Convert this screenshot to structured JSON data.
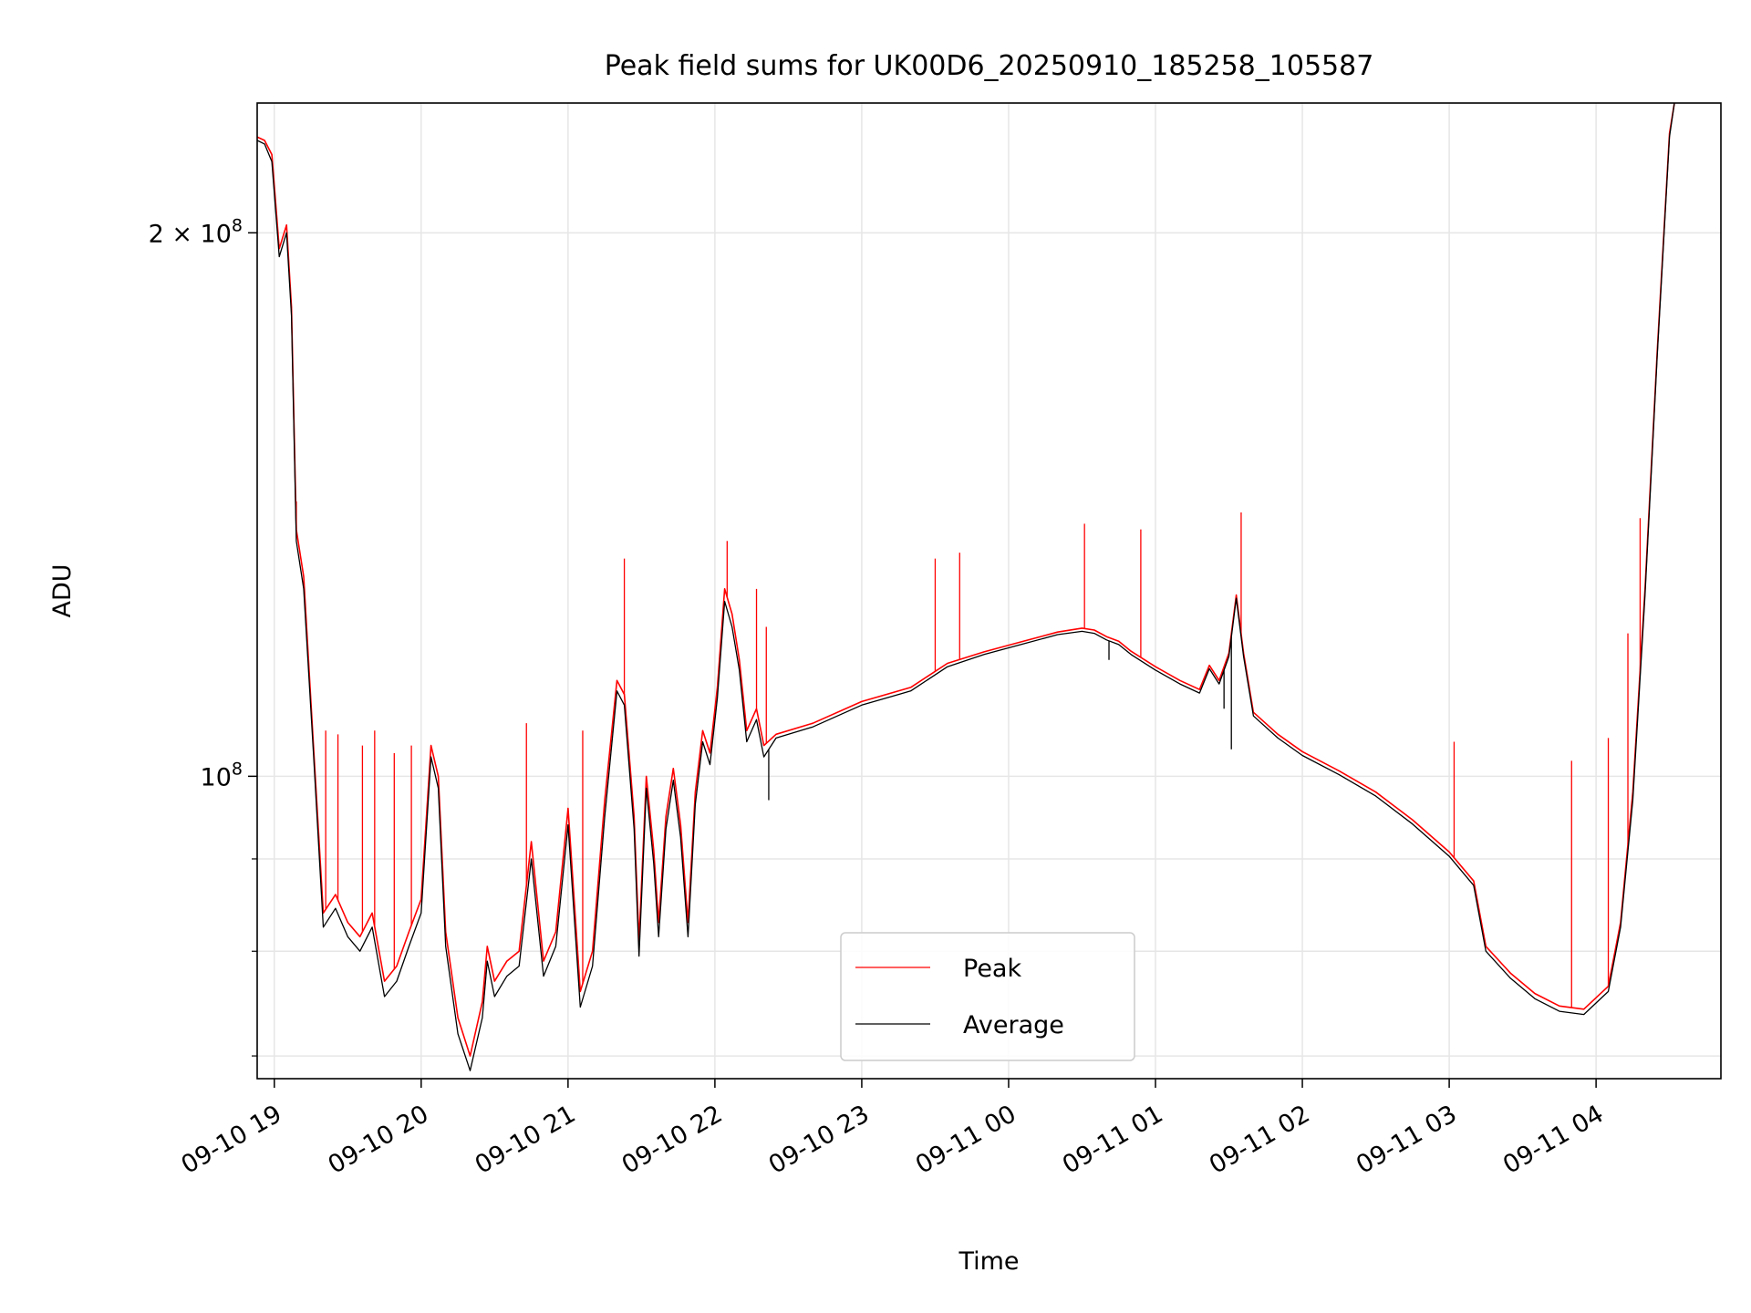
{
  "chart_data": {
    "type": "line",
    "title": "Peak field sums for UK00D6_20250910_185258_105587",
    "xlabel": "Time",
    "ylabel": "ADU",
    "yscale": "log",
    "ylim": [
      68000000,
      236000000
    ],
    "xlim": [
      "2025-09-10 18:53",
      "2025-09-11 04:51"
    ],
    "grid": true,
    "legend_position": "lower center",
    "x_ticks": [
      {
        "t": "2025-09-10 19:00",
        "label": "09-10 19"
      },
      {
        "t": "2025-09-10 20:00",
        "label": "09-10 20"
      },
      {
        "t": "2025-09-10 21:00",
        "label": "09-10 21"
      },
      {
        "t": "2025-09-10 22:00",
        "label": "09-10 22"
      },
      {
        "t": "2025-09-10 23:00",
        "label": "09-10 23"
      },
      {
        "t": "2025-09-11 00:00",
        "label": "09-11 00"
      },
      {
        "t": "2025-09-11 01:00",
        "label": "09-11 01"
      },
      {
        "t": "2025-09-11 02:00",
        "label": "09-11 02"
      },
      {
        "t": "2025-09-11 03:00",
        "label": "09-11 03"
      },
      {
        "t": "2025-09-11 04:00",
        "label": "09-11 04"
      }
    ],
    "y_major_ticks": [
      {
        "value": 100000000,
        "base": "10",
        "exp": "8",
        "coef": ""
      },
      {
        "value": 200000000,
        "base": "10",
        "exp": "8",
        "coef": "2 × "
      }
    ],
    "y_minor_ticks": [
      70000000,
      80000000,
      90000000
    ],
    "series": [
      {
        "name": "Peak",
        "color": "#ff0000",
        "points": [
          [
            "2025-09-10 18:53",
            226000000
          ],
          [
            "2025-09-10 18:56",
            225000000
          ],
          [
            "2025-09-10 18:59",
            221000000
          ],
          [
            "2025-09-10 19:02",
            196000000
          ],
          [
            "2025-09-10 19:05",
            202000000
          ],
          [
            "2025-09-10 19:07",
            182000000
          ],
          [
            "2025-09-10 19:09",
            137000000
          ],
          [
            "2025-09-10 19:12",
            129000000
          ],
          [
            "2025-09-10 19:16",
            104000000
          ],
          [
            "2025-09-10 19:20",
            84000000
          ],
          [
            "2025-09-10 19:25",
            86000000
          ],
          [
            "2025-09-10 19:30",
            83000000
          ],
          [
            "2025-09-10 19:35",
            81500000
          ],
          [
            "2025-09-10 19:40",
            84000000
          ],
          [
            "2025-09-10 19:45",
            77000000
          ],
          [
            "2025-09-10 19:50",
            78500000
          ],
          [
            "2025-09-10 19:55",
            82000000
          ],
          [
            "2025-09-10 20:00",
            85500000
          ],
          [
            "2025-09-10 20:04",
            104000000
          ],
          [
            "2025-09-10 20:07",
            100000000
          ],
          [
            "2025-09-10 20:10",
            82000000
          ],
          [
            "2025-09-10 20:15",
            73500000
          ],
          [
            "2025-09-10 20:20",
            70000000
          ],
          [
            "2025-09-10 20:25",
            75000000
          ],
          [
            "2025-09-10 20:27",
            80500000
          ],
          [
            "2025-09-10 20:30",
            77000000
          ],
          [
            "2025-09-10 20:35",
            79000000
          ],
          [
            "2025-09-10 20:40",
            80000000
          ],
          [
            "2025-09-10 20:45",
            92000000
          ],
          [
            "2025-09-10 20:50",
            79000000
          ],
          [
            "2025-09-10 20:55",
            82000000
          ],
          [
            "2025-09-10 21:00",
            96000000
          ],
          [
            "2025-09-10 21:05",
            76000000
          ],
          [
            "2025-09-10 21:10",
            80000000
          ],
          [
            "2025-09-10 21:15",
            97000000
          ],
          [
            "2025-09-10 21:20",
            113000000
          ],
          [
            "2025-09-10 21:23",
            111000000
          ],
          [
            "2025-09-10 21:27",
            95000000
          ],
          [
            "2025-09-10 21:29",
            81000000
          ],
          [
            "2025-09-10 21:32",
            100000000
          ],
          [
            "2025-09-10 21:35",
            91000000
          ],
          [
            "2025-09-10 21:37",
            83000000
          ],
          [
            "2025-09-10 21:40",
            95000000
          ],
          [
            "2025-09-10 21:43",
            101000000
          ],
          [
            "2025-09-10 21:46",
            94000000
          ],
          [
            "2025-09-10 21:49",
            83000000
          ],
          [
            "2025-09-10 21:52",
            98000000
          ],
          [
            "2025-09-10 21:55",
            106000000
          ],
          [
            "2025-09-10 21:58",
            103000000
          ],
          [
            "2025-09-10 22:01",
            112000000
          ],
          [
            "2025-09-10 22:04",
            127000000
          ],
          [
            "2025-09-10 22:07",
            123000000
          ],
          [
            "2025-09-10 22:10",
            116000000
          ],
          [
            "2025-09-10 22:13",
            106000000
          ],
          [
            "2025-09-10 22:17",
            109000000
          ],
          [
            "2025-09-10 22:20",
            104000000
          ],
          [
            "2025-09-10 22:25",
            105500000
          ],
          [
            "2025-09-10 22:40",
            107000000
          ],
          [
            "2025-09-10 23:00",
            110000000
          ],
          [
            "2025-09-10 23:20",
            112000000
          ],
          [
            "2025-09-10 23:35",
            115500000
          ],
          [
            "2025-09-10 23:50",
            117200000
          ],
          [
            "2025-09-11 00:05",
            118700000
          ],
          [
            "2025-09-11 00:20",
            120200000
          ],
          [
            "2025-09-11 00:30",
            120800000
          ],
          [
            "2025-09-11 00:35",
            120500000
          ],
          [
            "2025-09-11 00:40",
            119500000
          ],
          [
            "2025-09-11 00:45",
            118800000
          ],
          [
            "2025-09-11 00:50",
            117300000
          ],
          [
            "2025-09-11 01:00",
            115000000
          ],
          [
            "2025-09-11 01:10",
            113000000
          ],
          [
            "2025-09-11 01:18",
            111700000
          ],
          [
            "2025-09-11 01:22",
            115200000
          ],
          [
            "2025-09-11 01:26",
            113000000
          ],
          [
            "2025-09-11 01:30",
            117000000
          ],
          [
            "2025-09-11 01:33",
            126000000
          ],
          [
            "2025-09-11 01:36",
            117000000
          ],
          [
            "2025-09-11 01:40",
            108500000
          ],
          [
            "2025-09-11 01:50",
            105500000
          ],
          [
            "2025-09-11 02:00",
            103200000
          ],
          [
            "2025-09-11 02:15",
            100700000
          ],
          [
            "2025-09-11 02:30",
            98000000
          ],
          [
            "2025-09-11 02:45",
            94600000
          ],
          [
            "2025-09-11 03:00",
            90800000
          ],
          [
            "2025-09-11 03:10",
            87500000
          ],
          [
            "2025-09-11 03:15",
            80500000
          ],
          [
            "2025-09-11 03:25",
            77800000
          ],
          [
            "2025-09-11 03:35",
            75800000
          ],
          [
            "2025-09-11 03:45",
            74600000
          ],
          [
            "2025-09-11 03:55",
            74300000
          ],
          [
            "2025-09-11 04:05",
            76500000
          ],
          [
            "2025-09-11 04:10",
            83000000
          ],
          [
            "2025-09-11 04:15",
            98000000
          ],
          [
            "2025-09-11 04:20",
            127000000
          ],
          [
            "2025-09-11 04:25",
            172000000
          ],
          [
            "2025-09-11 04:30",
            227000000
          ],
          [
            "2025-09-11 04:32",
            236000000
          ]
        ],
        "spikes": [
          [
            "2025-09-10 19:09",
            142000000
          ],
          [
            "2025-09-10 19:21",
            106000000
          ],
          [
            "2025-09-10 19:26",
            105500000
          ],
          [
            "2025-09-10 19:36",
            104000000
          ],
          [
            "2025-09-10 19:41",
            106000000
          ],
          [
            "2025-09-10 19:49",
            103000000
          ],
          [
            "2025-09-10 19:56",
            104000000
          ],
          [
            "2025-09-10 20:43",
            107000000
          ],
          [
            "2025-09-10 21:06",
            106000000
          ],
          [
            "2025-09-10 21:23",
            132000000
          ],
          [
            "2025-09-10 22:05",
            135000000
          ],
          [
            "2025-09-10 22:17",
            127000000
          ],
          [
            "2025-09-10 22:21",
            121000000
          ],
          [
            "2025-09-10 23:30",
            132000000
          ],
          [
            "2025-09-10 23:40",
            133000000
          ],
          [
            "2025-09-11 00:31",
            138000000
          ],
          [
            "2025-09-11 00:54",
            137000000
          ],
          [
            "2025-09-11 01:35",
            140000000
          ],
          [
            "2025-09-11 03:02",
            104500000
          ],
          [
            "2025-09-11 03:50",
            102000000
          ],
          [
            "2025-09-11 04:05",
            105000000
          ],
          [
            "2025-09-11 04:13",
            120000000
          ],
          [
            "2025-09-11 04:18",
            139000000
          ]
        ]
      },
      {
        "name": "Average",
        "color": "#000000",
        "points": [
          [
            "2025-09-10 18:53",
            225000000
          ],
          [
            "2025-09-10 18:56",
            224000000
          ],
          [
            "2025-09-10 18:59",
            219000000
          ],
          [
            "2025-09-10 19:02",
            194000000
          ],
          [
            "2025-09-10 19:05",
            200000000
          ],
          [
            "2025-09-10 19:07",
            180000000
          ],
          [
            "2025-09-10 19:09",
            135000000
          ],
          [
            "2025-09-10 19:12",
            127000000
          ],
          [
            "2025-09-10 19:16",
            103000000
          ],
          [
            "2025-09-10 19:20",
            82500000
          ],
          [
            "2025-09-10 19:25",
            84500000
          ],
          [
            "2025-09-10 19:30",
            81500000
          ],
          [
            "2025-09-10 19:35",
            80000000
          ],
          [
            "2025-09-10 19:40",
            82500000
          ],
          [
            "2025-09-10 19:45",
            75500000
          ],
          [
            "2025-09-10 19:50",
            77000000
          ],
          [
            "2025-09-10 19:55",
            80500000
          ],
          [
            "2025-09-10 20:00",
            84000000
          ],
          [
            "2025-09-10 20:04",
            102500000
          ],
          [
            "2025-09-10 20:07",
            98500000
          ],
          [
            "2025-09-10 20:10",
            80500000
          ],
          [
            "2025-09-10 20:15",
            72000000
          ],
          [
            "2025-09-10 20:20",
            68700000
          ],
          [
            "2025-09-10 20:25",
            73500000
          ],
          [
            "2025-09-10 20:27",
            79000000
          ],
          [
            "2025-09-10 20:30",
            75500000
          ],
          [
            "2025-09-10 20:35",
            77500000
          ],
          [
            "2025-09-10 20:40",
            78500000
          ],
          [
            "2025-09-10 20:45",
            90000000
          ],
          [
            "2025-09-10 20:50",
            77500000
          ],
          [
            "2025-09-10 20:55",
            80500000
          ],
          [
            "2025-09-10 21:00",
            94000000
          ],
          [
            "2025-09-10 21:05",
            74500000
          ],
          [
            "2025-09-10 21:10",
            78500000
          ],
          [
            "2025-09-10 21:15",
            95000000
          ],
          [
            "2025-09-10 21:20",
            111500000
          ],
          [
            "2025-09-10 21:23",
            109500000
          ],
          [
            "2025-09-10 21:27",
            93500000
          ],
          [
            "2025-09-10 21:29",
            79500000
          ],
          [
            "2025-09-10 21:32",
            98500000
          ],
          [
            "2025-09-10 21:35",
            89500000
          ],
          [
            "2025-09-10 21:37",
            81500000
          ],
          [
            "2025-09-10 21:40",
            93500000
          ],
          [
            "2025-09-10 21:43",
            99500000
          ],
          [
            "2025-09-10 21:46",
            92500000
          ],
          [
            "2025-09-10 21:49",
            81500000
          ],
          [
            "2025-09-10 21:52",
            96500000
          ],
          [
            "2025-09-10 21:55",
            104500000
          ],
          [
            "2025-09-10 21:58",
            101500000
          ],
          [
            "2025-09-10 22:01",
            110500000
          ],
          [
            "2025-09-10 22:04",
            125000000
          ],
          [
            "2025-09-10 22:07",
            121000000
          ],
          [
            "2025-09-10 22:10",
            114500000
          ],
          [
            "2025-09-10 22:13",
            104500000
          ],
          [
            "2025-09-10 22:17",
            107500000
          ],
          [
            "2025-09-10 22:20",
            102500000
          ],
          [
            "2025-09-10 22:25",
            105000000
          ],
          [
            "2025-09-10 22:40",
            106500000
          ],
          [
            "2025-09-10 23:00",
            109500000
          ],
          [
            "2025-09-10 23:20",
            111500000
          ],
          [
            "2025-09-10 23:35",
            115000000
          ],
          [
            "2025-09-10 23:50",
            116800000
          ],
          [
            "2025-09-11 00:05",
            118300000
          ],
          [
            "2025-09-11 00:20",
            119800000
          ],
          [
            "2025-09-11 00:30",
            120300000
          ],
          [
            "2025-09-11 00:35",
            120000000
          ],
          [
            "2025-09-11 00:40",
            119000000
          ],
          [
            "2025-09-11 00:45",
            118300000
          ],
          [
            "2025-09-11 00:50",
            116800000
          ],
          [
            "2025-09-11 01:00",
            114500000
          ],
          [
            "2025-09-11 01:10",
            112500000
          ],
          [
            "2025-09-11 01:18",
            111200000
          ],
          [
            "2025-09-11 01:22",
            114700000
          ],
          [
            "2025-09-11 01:26",
            112500000
          ],
          [
            "2025-09-11 01:30",
            116500000
          ],
          [
            "2025-09-11 01:33",
            125500000
          ],
          [
            "2025-09-11 01:36",
            116500000
          ],
          [
            "2025-09-11 01:40",
            108000000
          ],
          [
            "2025-09-11 01:50",
            105000000
          ],
          [
            "2025-09-11 02:00",
            102700000
          ],
          [
            "2025-09-11 02:15",
            100200000
          ],
          [
            "2025-09-11 02:30",
            97500000
          ],
          [
            "2025-09-11 02:45",
            94100000
          ],
          [
            "2025-09-11 03:00",
            90300000
          ],
          [
            "2025-09-11 03:10",
            87000000
          ],
          [
            "2025-09-11 03:15",
            80000000
          ],
          [
            "2025-09-11 03:25",
            77300000
          ],
          [
            "2025-09-11 03:35",
            75300000
          ],
          [
            "2025-09-11 03:45",
            74100000
          ],
          [
            "2025-09-11 03:55",
            73800000
          ],
          [
            "2025-09-11 04:05",
            76000000
          ],
          [
            "2025-09-11 04:10",
            82500000
          ],
          [
            "2025-09-11 04:15",
            97000000
          ],
          [
            "2025-09-11 04:20",
            126000000
          ],
          [
            "2025-09-11 04:25",
            171000000
          ],
          [
            "2025-09-11 04:30",
            226000000
          ],
          [
            "2025-09-11 04:32",
            236000000
          ]
        ],
        "dips": [
          [
            "2025-09-10 22:22",
            97000000
          ],
          [
            "2025-09-11 00:41",
            116000000
          ],
          [
            "2025-09-11 01:28",
            109000000
          ],
          [
            "2025-09-11 01:31",
            103500000
          ]
        ]
      }
    ]
  }
}
